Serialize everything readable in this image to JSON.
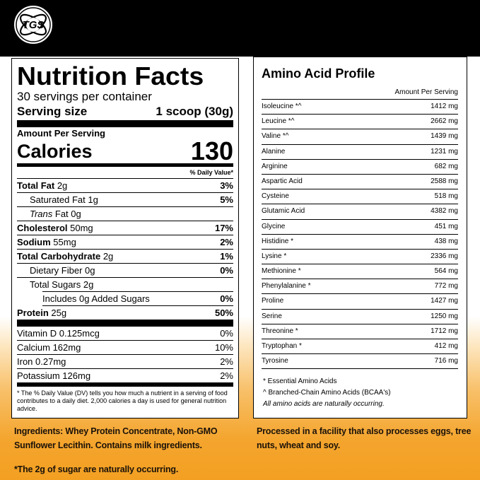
{
  "brand": {
    "logo_text": "TGS"
  },
  "nutrition": {
    "title": "Nutrition Facts",
    "servings": "30 servings per container",
    "serving_size_label": "Serving size",
    "serving_size_value": "1 scoop (30g)",
    "amount_per_serving": "Amount Per Serving",
    "calories_label": "Calories",
    "calories_value": "130",
    "daily_value_header": "% Daily Value*",
    "rows": [
      {
        "label_bold": "Total Fat",
        "label": " 2g",
        "pct": "3%",
        "indent": 0
      },
      {
        "label_bold": "",
        "label": "Saturated Fat 1g",
        "pct": "5%",
        "indent": 1
      },
      {
        "label_italic": "Trans",
        "label": " Fat 0g",
        "pct": "",
        "indent": 1
      },
      {
        "label_bold": "Cholesterol",
        "label": " 50mg",
        "pct": "17%",
        "indent": 0
      },
      {
        "label_bold": "Sodium",
        "label": " 55mg",
        "pct": "2%",
        "indent": 0
      },
      {
        "label_bold": "Total Carbohydrate",
        "label": " 2g",
        "pct": "1%",
        "indent": 0
      },
      {
        "label_bold": "",
        "label": "Dietary Fiber 0g",
        "pct": "0%",
        "indent": 1
      },
      {
        "label_bold": "",
        "label": "Total Sugars 2g",
        "pct": "",
        "indent": 1
      },
      {
        "label_bold": "",
        "label": "Includes 0g Added Sugars",
        "pct": "0%",
        "indent": 2
      },
      {
        "label_bold": "Protein",
        "label": " 25g",
        "pct": "50%",
        "indent": 0
      }
    ],
    "vitamins": [
      {
        "label": "Vitamin D 0.125mcg",
        "pct": "0%"
      },
      {
        "label": "Calcium 162mg",
        "pct": "10%"
      },
      {
        "label": "Iron 0.27mg",
        "pct": "2%"
      },
      {
        "label": "Potassium 126mg",
        "pct": "2%"
      }
    ],
    "footnote": "* The % Daily Value (DV) tells you how much a nutrient in a serving of food contributes to a daily diet. 2,000 calories a day is used for general nutrition advice."
  },
  "amino": {
    "title": "Amino Acid Profile",
    "amount_header": "Amount Per Serving",
    "rows": [
      {
        "name": "Isoleucine *^",
        "value": "1412 mg"
      },
      {
        "name": "Leucine *^",
        "value": "2662 mg"
      },
      {
        "name": "Valine *^",
        "value": "1439 mg"
      },
      {
        "name": "Alanine",
        "value": "1231 mg"
      },
      {
        "name": "Arginine",
        "value": "682 mg"
      },
      {
        "name": "Aspartic Acid",
        "value": "2588 mg"
      },
      {
        "name": "Cysteine",
        "value": "518 mg"
      },
      {
        "name": "Glutamic Acid",
        "value": "4382 mg"
      },
      {
        "name": "Glycine",
        "value": "451 mg"
      },
      {
        "name": "Histidine *",
        "value": "438 mg"
      },
      {
        "name": "Lysine *",
        "value": "2336 mg"
      },
      {
        "name": "Methionine *",
        "value": "564 mg"
      },
      {
        "name": "Phenylalanine *",
        "value": "772 mg"
      },
      {
        "name": "Proline",
        "value": "1427 mg"
      },
      {
        "name": "Serine",
        "value": "1250 mg"
      },
      {
        "name": "Threonine *",
        "value": "1712 mg"
      },
      {
        "name": "Tryptophan *",
        "value": "412 mg"
      },
      {
        "name": "Tyrosine",
        "value": "716 mg"
      }
    ],
    "note_essential": "* Essential Amino Acids",
    "note_bcaa": "^ Branched-Chain Amino Acids (BCAA's)",
    "note_natural": "All amino acids are naturally occurring."
  },
  "footer": {
    "ingredients_line1": "Ingredients: Whey Protein Concentrate, Non-GMO",
    "ingredients_line2": "Sunflower Lecithin. Contains milk ingredients.",
    "sugar_note": "*The 2g of sugar are naturally occurring.",
    "facility_line1": "Processed in a facility that also processes eggs, tree",
    "facility_line2": "nuts, wheat and soy."
  }
}
